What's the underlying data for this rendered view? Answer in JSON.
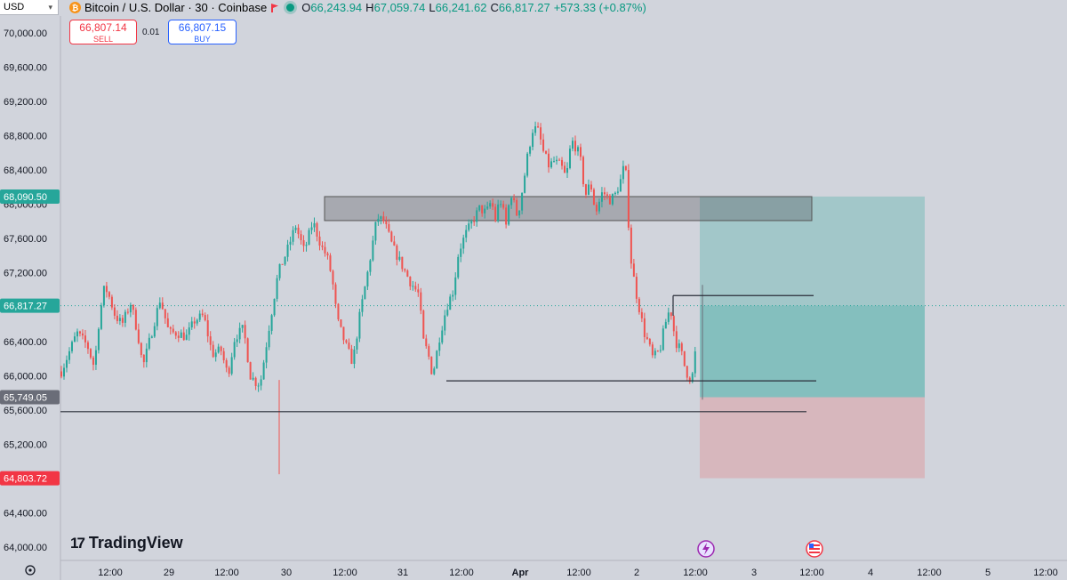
{
  "header": {
    "currency": "USD",
    "symbol_title": "Bitcoin / U.S. Dollar · 30 · Coinbase",
    "ohlc": [
      {
        "label": "O",
        "value": "66,243.94"
      },
      {
        "label": "H",
        "value": "67,059.74"
      },
      {
        "label": "L",
        "value": "66,241.62"
      },
      {
        "label": "C",
        "value": "66,817.27"
      }
    ],
    "change": "+573.33 (+0.87%)"
  },
  "trade": {
    "sell_price": "66,807.14",
    "sell_label": "SELL",
    "spread": "0.01",
    "buy_price": "66,807.15",
    "buy_label": "BUY"
  },
  "logo": {
    "text": "TradingView"
  },
  "colors": {
    "up": "#26a69a",
    "down": "#ef5350",
    "background": "#d1d4dc",
    "profit_zone": "rgba(38,166,154,0.35)",
    "loss_zone": "rgba(239,83,80,0.22)",
    "price_tag_green": "#26a69a",
    "price_tag_gray": "#6a6d78",
    "price_tag_red": "#f23645"
  },
  "chart_data": {
    "type": "candlestick",
    "title": "Bitcoin / U.S. Dollar · 30 · Coinbase",
    "ylim": [
      63900,
      70200
    ],
    "y_ticks": [
      "70,000.00",
      "69,600.00",
      "69,200.00",
      "68,800.00",
      "68,400.00",
      "68,000.00",
      "67,600.00",
      "67,200.00",
      "66,800.00",
      "66,400.00",
      "66,000.00",
      "65,600.00",
      "65,200.00",
      "64,800.00",
      "64,400.00",
      "64,000.00"
    ],
    "x_ticks": [
      "12:00",
      "29",
      "12:00",
      "30",
      "12:00",
      "31",
      "12:00",
      "Apr",
      "12:00",
      "2",
      "12:00",
      "3",
      "12:00",
      "4",
      "12:00",
      "5",
      "12:00"
    ],
    "price_tags": [
      {
        "label": "68,090.50",
        "value": 68090.5,
        "color": "#26a69a"
      },
      {
        "label": "66,817.27",
        "value": 66817.27,
        "color": "#26a69a"
      },
      {
        "label": "65,749.05",
        "value": 65749.05,
        "color": "#6a6d78"
      },
      {
        "label": "64,803.72",
        "value": 64803.72,
        "color": "#f23645"
      }
    ],
    "current_price": 66817.27,
    "anchors": [
      [
        0,
        66050
      ],
      [
        8,
        66250
      ],
      [
        18,
        66500
      ],
      [
        30,
        66350
      ],
      [
        38,
        66100
      ],
      [
        44,
        66700
      ],
      [
        50,
        67050
      ],
      [
        56,
        66900
      ],
      [
        62,
        66700
      ],
      [
        70,
        66600
      ],
      [
        80,
        66850
      ],
      [
        88,
        66500
      ],
      [
        94,
        66100
      ],
      [
        104,
        66500
      ],
      [
        114,
        66900
      ],
      [
        124,
        66500
      ],
      [
        134,
        66500
      ],
      [
        144,
        66450
      ],
      [
        154,
        66650
      ],
      [
        164,
        66700
      ],
      [
        174,
        66250
      ],
      [
        184,
        66300
      ],
      [
        192,
        66000
      ],
      [
        200,
        66450
      ],
      [
        210,
        66550
      ],
      [
        218,
        66000
      ],
      [
        226,
        65900
      ],
      [
        230,
        65950
      ],
      [
        240,
        66600
      ],
      [
        250,
        67200
      ],
      [
        260,
        67450
      ],
      [
        270,
        67750
      ],
      [
        280,
        67450
      ],
      [
        290,
        67800
      ],
      [
        300,
        67500
      ],
      [
        306,
        67400
      ],
      [
        312,
        67150
      ],
      [
        318,
        66650
      ],
      [
        328,
        66350
      ],
      [
        336,
        66150
      ],
      [
        344,
        66700
      ],
      [
        354,
        67250
      ],
      [
        364,
        67850
      ],
      [
        372,
        67800
      ],
      [
        382,
        67500
      ],
      [
        392,
        67300
      ],
      [
        402,
        67100
      ],
      [
        412,
        66950
      ],
      [
        418,
        66350
      ],
      [
        422,
        66300
      ],
      [
        428,
        66000
      ],
      [
        436,
        66450
      ],
      [
        444,
        66800
      ],
      [
        452,
        67000
      ],
      [
        458,
        67450
      ],
      [
        466,
        67650
      ],
      [
        474,
        67800
      ],
      [
        482,
        67950
      ],
      [
        490,
        67900
      ],
      [
        496,
        68050
      ],
      [
        500,
        67800
      ],
      [
        504,
        68000
      ],
      [
        508,
        68050
      ],
      [
        512,
        67700
      ],
      [
        518,
        68150
      ],
      [
        526,
        67850
      ],
      [
        532,
        68200
      ],
      [
        538,
        68600
      ],
      [
        544,
        68900
      ],
      [
        550,
        68850
      ],
      [
        556,
        68600
      ],
      [
        562,
        68450
      ],
      [
        568,
        68500
      ],
      [
        576,
        68450
      ],
      [
        582,
        68300
      ],
      [
        588,
        68750
      ],
      [
        594,
        68650
      ],
      [
        598,
        68550
      ],
      [
        604,
        68100
      ],
      [
        610,
        68250
      ],
      [
        616,
        67900
      ],
      [
        624,
        68150
      ],
      [
        632,
        68050
      ],
      [
        638,
        68100
      ],
      [
        644,
        68250
      ],
      [
        650,
        68500
      ],
      [
        656,
        67400
      ],
      [
        662,
        67000
      ],
      [
        668,
        66700
      ],
      [
        672,
        66500
      ],
      [
        676,
        66400
      ],
      [
        682,
        66200
      ],
      [
        690,
        66300
      ],
      [
        696,
        66600
      ],
      [
        702,
        66800
      ],
      [
        708,
        66400
      ],
      [
        714,
        66300
      ],
      [
        720,
        66050
      ],
      [
        726,
        65950
      ],
      [
        730,
        66100
      ],
      [
        733,
        66817
      ]
    ],
    "spikes": [
      {
        "x": 314,
        "low": 64850,
        "close": 65950
      },
      {
        "x": 790,
        "low": 65720,
        "high": 67060
      }
    ],
    "drawings": {
      "supply_zone": {
        "x1": 365,
        "x2": 913,
        "top": 68090,
        "bottom": 67810
      },
      "resistance_line": {
        "x1": 757,
        "x2": 915,
        "value": 66935
      },
      "support_line": {
        "x1": 502,
        "x2": 918,
        "value": 65940
      },
      "stop_line": {
        "x1": 68,
        "x2": 907,
        "value": 65580
      },
      "position": {
        "x1": 787,
        "x2": 1040,
        "target": 68090.5,
        "entry": 66817.27,
        "mid": 65749.05,
        "stop": 64803.72
      }
    }
  }
}
